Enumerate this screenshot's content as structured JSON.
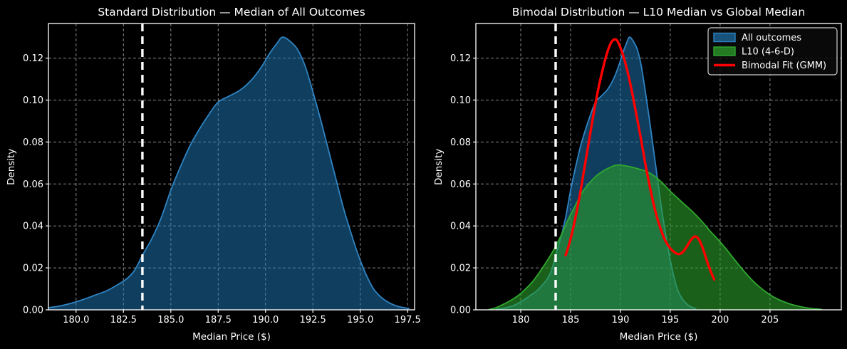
{
  "figure": {
    "background": "#000000",
    "text_color": "#ffffff",
    "grid_color": "#8a8a8a",
    "spine_color": "#ffffff",
    "median_line_color": "#ffffff"
  },
  "chart_data": [
    {
      "type": "area",
      "title": "Standard Distribution — Median of All Outcomes",
      "xlabel": "Median Price ($)",
      "ylabel": "Density",
      "xlim": [
        178.54,
        197.87
      ],
      "ylim": [
        0,
        0.1365
      ],
      "grid": true,
      "legend": null,
      "xticks": {
        "values": [
          180.0,
          182.5,
          185.0,
          187.5,
          190.0,
          192.5,
          195.0,
          197.5
        ],
        "labels": [
          "180.0",
          "182.5",
          "185.0",
          "187.5",
          "190.0",
          "192.5",
          "195.0",
          "197.5"
        ]
      },
      "yticks": {
        "values": [
          0.0,
          0.02,
          0.04,
          0.06,
          0.08,
          0.1,
          0.12
        ],
        "labels": [
          "0.00",
          "0.02",
          "0.04",
          "0.06",
          "0.08",
          "0.10",
          "0.12"
        ]
      },
      "vline": {
        "x": 183.5,
        "color": "#ffffff",
        "width": 3.4,
        "dash": "11 7"
      },
      "series": [
        {
          "name": "All outcomes",
          "kind": "area",
          "color": "#1f77b4",
          "stroke": "#2f84c3",
          "fill_alpha": 0.52,
          "stroke_width": 1.8,
          "points": [
            [
              177.5,
              0.0002
            ],
            [
              178.3,
              0.0008
            ],
            [
              179.0,
              0.0016
            ],
            [
              179.7,
              0.003
            ],
            [
              180.4,
              0.005
            ],
            [
              181.0,
              0.007
            ],
            [
              181.6,
              0.009
            ],
            [
              182.2,
              0.012
            ],
            [
              182.7,
              0.015
            ],
            [
              183.1,
              0.019
            ],
            [
              183.5,
              0.026
            ],
            [
              184.0,
              0.034
            ],
            [
              184.5,
              0.044
            ],
            [
              185.0,
              0.057
            ],
            [
              185.5,
              0.068
            ],
            [
              186.0,
              0.078
            ],
            [
              186.5,
              0.086
            ],
            [
              187.0,
              0.093
            ],
            [
              187.5,
              0.099
            ],
            [
              188.1,
              0.102
            ],
            [
              188.7,
              0.105
            ],
            [
              189.3,
              0.11
            ],
            [
              189.8,
              0.116
            ],
            [
              190.2,
              0.122
            ],
            [
              190.6,
              0.127
            ],
            [
              190.9,
              0.13
            ],
            [
              191.3,
              0.128
            ],
            [
              191.7,
              0.124
            ],
            [
              192.1,
              0.116
            ],
            [
              192.5,
              0.104
            ],
            [
              192.9,
              0.091
            ],
            [
              193.3,
              0.077
            ],
            [
              193.7,
              0.063
            ],
            [
              194.1,
              0.049
            ],
            [
              194.5,
              0.037
            ],
            [
              194.9,
              0.026
            ],
            [
              195.3,
              0.017
            ],
            [
              195.7,
              0.01
            ],
            [
              196.1,
              0.006
            ],
            [
              196.5,
              0.0035
            ],
            [
              197.0,
              0.0016
            ],
            [
              197.6,
              0.0006
            ]
          ]
        }
      ]
    },
    {
      "type": "area",
      "title": "Bimodal Distribution — L10 Median vs Global Median",
      "xlabel": "Median Price ($)",
      "ylabel": "Density",
      "xlim": [
        175.5,
        212.15
      ],
      "ylim": [
        0,
        0.1365
      ],
      "grid": true,
      "legend": {
        "position": "upper right",
        "labels": [
          "All outcomes",
          "L10 (4-6-D)",
          "Bimodal Fit (GMM)"
        ]
      },
      "xticks": {
        "values": [
          180,
          185,
          190,
          195,
          200,
          205
        ],
        "labels": [
          "180",
          "185",
          "190",
          "195",
          "200",
          "205"
        ]
      },
      "yticks": {
        "values": [
          0.0,
          0.02,
          0.04,
          0.06,
          0.08,
          0.1,
          0.12
        ],
        "labels": [
          "0.00",
          "0.02",
          "0.04",
          "0.06",
          "0.08",
          "0.10",
          "0.12"
        ]
      },
      "vline": {
        "x": 183.5,
        "color": "#ffffff",
        "width": 3.4,
        "dash": "11 7"
      },
      "series": [
        {
          "name": "All outcomes",
          "kind": "area",
          "color": "#1f77b4",
          "stroke": "#2f84c3",
          "fill_alpha": 0.52,
          "stroke_width": 1.8,
          "points": [
            [
              177.5,
              0.0002
            ],
            [
              178.3,
              0.0008
            ],
            [
              179.0,
              0.0016
            ],
            [
              179.7,
              0.003
            ],
            [
              180.4,
              0.005
            ],
            [
              181.0,
              0.007
            ],
            [
              181.6,
              0.009
            ],
            [
              182.2,
              0.012
            ],
            [
              182.7,
              0.015
            ],
            [
              183.1,
              0.019
            ],
            [
              183.5,
              0.026
            ],
            [
              184.0,
              0.034
            ],
            [
              184.5,
              0.044
            ],
            [
              185.0,
              0.057
            ],
            [
              185.5,
              0.068
            ],
            [
              186.0,
              0.078
            ],
            [
              186.5,
              0.086
            ],
            [
              187.0,
              0.093
            ],
            [
              187.5,
              0.099
            ],
            [
              188.1,
              0.102
            ],
            [
              188.7,
              0.105
            ],
            [
              189.3,
              0.11
            ],
            [
              189.8,
              0.116
            ],
            [
              190.2,
              0.122
            ],
            [
              190.6,
              0.127
            ],
            [
              190.9,
              0.13
            ],
            [
              191.3,
              0.128
            ],
            [
              191.7,
              0.124
            ],
            [
              192.1,
              0.116
            ],
            [
              192.5,
              0.104
            ],
            [
              192.9,
              0.091
            ],
            [
              193.3,
              0.077
            ],
            [
              193.7,
              0.063
            ],
            [
              194.1,
              0.049
            ],
            [
              194.5,
              0.037
            ],
            [
              194.9,
              0.026
            ],
            [
              195.3,
              0.017
            ],
            [
              195.7,
              0.01
            ],
            [
              196.1,
              0.006
            ],
            [
              196.5,
              0.0035
            ],
            [
              197.0,
              0.0016
            ],
            [
              197.6,
              0.0006
            ]
          ]
        },
        {
          "name": "L10 (4-6-D)",
          "kind": "area",
          "color": "#2ca02c",
          "stroke": "#2fa82f",
          "fill_alpha": 0.6,
          "stroke_width": 1.8,
          "points": [
            [
              176.8,
              0.0001
            ],
            [
              177.5,
              0.001
            ],
            [
              178.2,
              0.0025
            ],
            [
              179.0,
              0.0045
            ],
            [
              179.8,
              0.007
            ],
            [
              180.5,
              0.01
            ],
            [
              181.2,
              0.0135
            ],
            [
              181.9,
              0.018
            ],
            [
              182.6,
              0.023
            ],
            [
              183.3,
              0.0285
            ],
            [
              184.0,
              0.035
            ],
            [
              184.7,
              0.0425
            ],
            [
              185.4,
              0.049
            ],
            [
              186.1,
              0.0555
            ],
            [
              186.8,
              0.06
            ],
            [
              187.5,
              0.0635
            ],
            [
              188.2,
              0.066
            ],
            [
              188.9,
              0.0678
            ],
            [
              189.6,
              0.069
            ],
            [
              190.3,
              0.0688
            ],
            [
              191.0,
              0.0682
            ],
            [
              191.8,
              0.0672
            ],
            [
              192.6,
              0.066
            ],
            [
              193.4,
              0.0638
            ],
            [
              194.2,
              0.0605
            ],
            [
              195.0,
              0.0565
            ],
            [
              195.8,
              0.053
            ],
            [
              196.6,
              0.0495
            ],
            [
              197.4,
              0.046
            ],
            [
              198.2,
              0.042
            ],
            [
              199.0,
              0.0375
            ],
            [
              199.8,
              0.0335
            ],
            [
              200.6,
              0.029
            ],
            [
              201.4,
              0.0242
            ],
            [
              202.2,
              0.0195
            ],
            [
              203.0,
              0.0152
            ],
            [
              203.8,
              0.0115
            ],
            [
              204.6,
              0.0085
            ],
            [
              205.4,
              0.006
            ],
            [
              206.2,
              0.0042
            ],
            [
              207.0,
              0.0028
            ],
            [
              207.8,
              0.0018
            ],
            [
              208.6,
              0.001
            ],
            [
              209.4,
              0.0005
            ],
            [
              210.2,
              0.0002
            ]
          ]
        },
        {
          "name": "Bimodal Fit (GMM)",
          "kind": "line",
          "color": "#ff0000",
          "stroke": "#ff0000",
          "stroke_width": 3.4,
          "points": [
            [
              184.5,
              0.026
            ],
            [
              184.9,
              0.032
            ],
            [
              185.4,
              0.042
            ],
            [
              185.9,
              0.054
            ],
            [
              186.4,
              0.068
            ],
            [
              186.9,
              0.082
            ],
            [
              187.4,
              0.096
            ],
            [
              187.9,
              0.108
            ],
            [
              188.4,
              0.118
            ],
            [
              188.8,
              0.1245
            ],
            [
              189.2,
              0.1283
            ],
            [
              189.6,
              0.1287
            ],
            [
              190.0,
              0.125
            ],
            [
              190.5,
              0.1175
            ],
            [
              191.0,
              0.1075
            ],
            [
              191.5,
              0.0955
            ],
            [
              192.0,
              0.083
            ],
            [
              192.5,
              0.0695
            ],
            [
              193.0,
              0.0575
            ],
            [
              193.5,
              0.047
            ],
            [
              194.0,
              0.039
            ],
            [
              194.5,
              0.033
            ],
            [
              195.0,
              0.0293
            ],
            [
              195.5,
              0.0272
            ],
            [
              195.9,
              0.0266
            ],
            [
              196.3,
              0.0278
            ],
            [
              196.7,
              0.0305
            ],
            [
              197.1,
              0.0335
            ],
            [
              197.5,
              0.035
            ],
            [
              197.9,
              0.0333
            ],
            [
              198.3,
              0.0288
            ],
            [
              198.7,
              0.023
            ],
            [
              199.1,
              0.0178
            ],
            [
              199.4,
              0.0145
            ]
          ]
        }
      ]
    }
  ]
}
